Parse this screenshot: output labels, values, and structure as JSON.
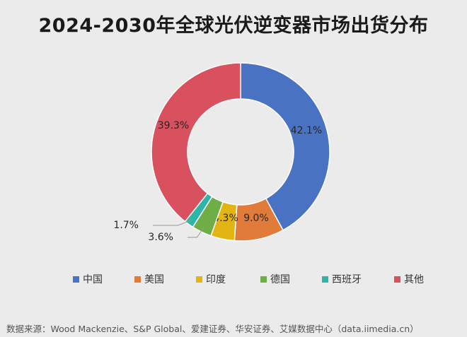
{
  "chart_data": {
    "type": "pie",
    "variant": "donut",
    "title": "2024-2030年全球光伏逆变器市场出货分布",
    "categories": [
      "中国",
      "美国",
      "印度",
      "德国",
      "西班牙",
      "其他"
    ],
    "values": [
      42.1,
      9.0,
      4.3,
      3.6,
      1.7,
      39.3
    ],
    "labels": [
      "42.1%",
      "9.0%",
      "4.3%",
      "3.6%",
      "1.7%",
      "39.3%"
    ],
    "colors": [
      "#4a72c2",
      "#e07b39",
      "#e3b514",
      "#6fae47",
      "#2cb6a7",
      "#d9505f"
    ],
    "legend_position": "bottom",
    "start_angle": "top, clockwise"
  },
  "source": "数据来源：Wood Mackenzie、S&P Global、爱建证券、华安证券、艾媒数据中心（data.iimedia.cn）"
}
